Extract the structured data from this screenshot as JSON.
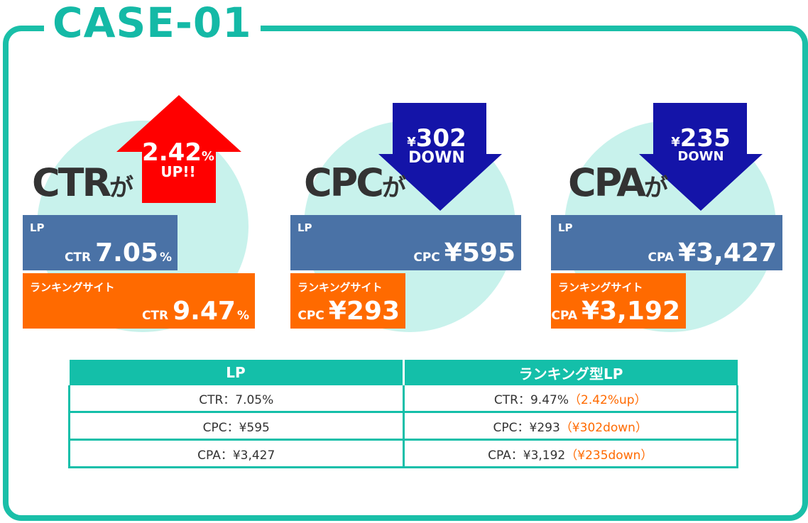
{
  "case_title": "CASE-01",
  "colors": {
    "teal": "#1abfa8",
    "circle": "#c8f2ec",
    "lp_box": "#4a72a6",
    "ranking_box": "#ff6a00",
    "up_arrow": "#ff0000",
    "down_arrow": "#1414a8"
  },
  "panels": [
    {
      "metric": "CTR",
      "suffix": "が",
      "arrow": {
        "direction": "up",
        "icon": "up-arrow-icon",
        "value": "2.42",
        "unit": "%",
        "label": "UP!!"
      },
      "lp": {
        "label": "LP",
        "key": "CTR",
        "value": "7.05",
        "unit": "%"
      },
      "ranking": {
        "label": "ランキングサイト",
        "key": "CTR",
        "value": "9.47",
        "unit": "%"
      }
    },
    {
      "metric": "CPC",
      "suffix": "が",
      "arrow": {
        "direction": "down",
        "icon": "down-arrow-icon",
        "currency": "¥",
        "value": "302",
        "label": "DOWN"
      },
      "lp": {
        "label": "LP",
        "key": "CPC",
        "value": "¥595"
      },
      "ranking": {
        "label": "ランキングサイト",
        "key": "CPC",
        "value": "¥293"
      }
    },
    {
      "metric": "CPA",
      "suffix": "が",
      "arrow": {
        "direction": "down",
        "icon": "down-arrow-icon",
        "currency": "¥",
        "value": "235",
        "label": "DOWN"
      },
      "lp": {
        "label": "LP",
        "key": "CPA",
        "value": "¥3,427"
      },
      "ranking": {
        "label": "ランキングサイト",
        "key": "CPA",
        "value": "¥3,192"
      }
    }
  ],
  "table": {
    "headers": [
      "LP",
      "ランキング型LP"
    ],
    "rows": [
      {
        "lp": "CTR：7.05%",
        "ranking": "CTR：9.47%",
        "diff": "（2.42%up）"
      },
      {
        "lp": "CPC：¥595",
        "ranking": "CPC：¥293",
        "diff": "（¥302down）"
      },
      {
        "lp": "CPA：¥3,427",
        "ranking": "CPA：¥3,192",
        "diff": "（¥235down）"
      }
    ]
  }
}
